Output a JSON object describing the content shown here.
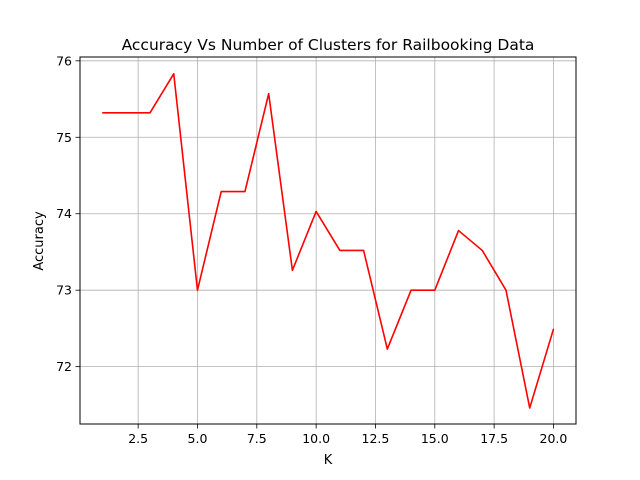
{
  "chart_data": {
    "type": "line",
    "title": "Accuracy Vs Number of Clusters for Railbooking Data",
    "xlabel": "K",
    "ylabel": "Accuracy",
    "xlim": [
      0.05,
      20.95
    ],
    "ylim": [
      71.25,
      76.05
    ],
    "xticks": [
      2.5,
      5.0,
      7.5,
      10.0,
      12.5,
      15.0,
      17.5,
      20.0
    ],
    "xtick_labels": [
      "2.5",
      "5.0",
      "7.5",
      "10.0",
      "12.5",
      "15.0",
      "17.5",
      "20.0"
    ],
    "yticks": [
      72,
      73,
      74,
      75,
      76
    ],
    "ytick_labels": [
      "72",
      "73",
      "74",
      "75",
      "76"
    ],
    "grid": true,
    "series": [
      {
        "color": "#ff0000",
        "x": [
          1,
          2,
          3,
          4,
          5,
          6,
          7,
          8,
          9,
          10,
          11,
          12,
          13,
          14,
          15,
          16,
          17,
          18,
          19,
          20
        ],
        "values": [
          75.32,
          75.32,
          75.32,
          75.83,
          73.0,
          74.29,
          74.29,
          75.57,
          73.26,
          74.03,
          73.52,
          73.52,
          72.23,
          73.0,
          73.0,
          73.78,
          73.52,
          73.0,
          71.46,
          72.49
        ]
      }
    ]
  }
}
